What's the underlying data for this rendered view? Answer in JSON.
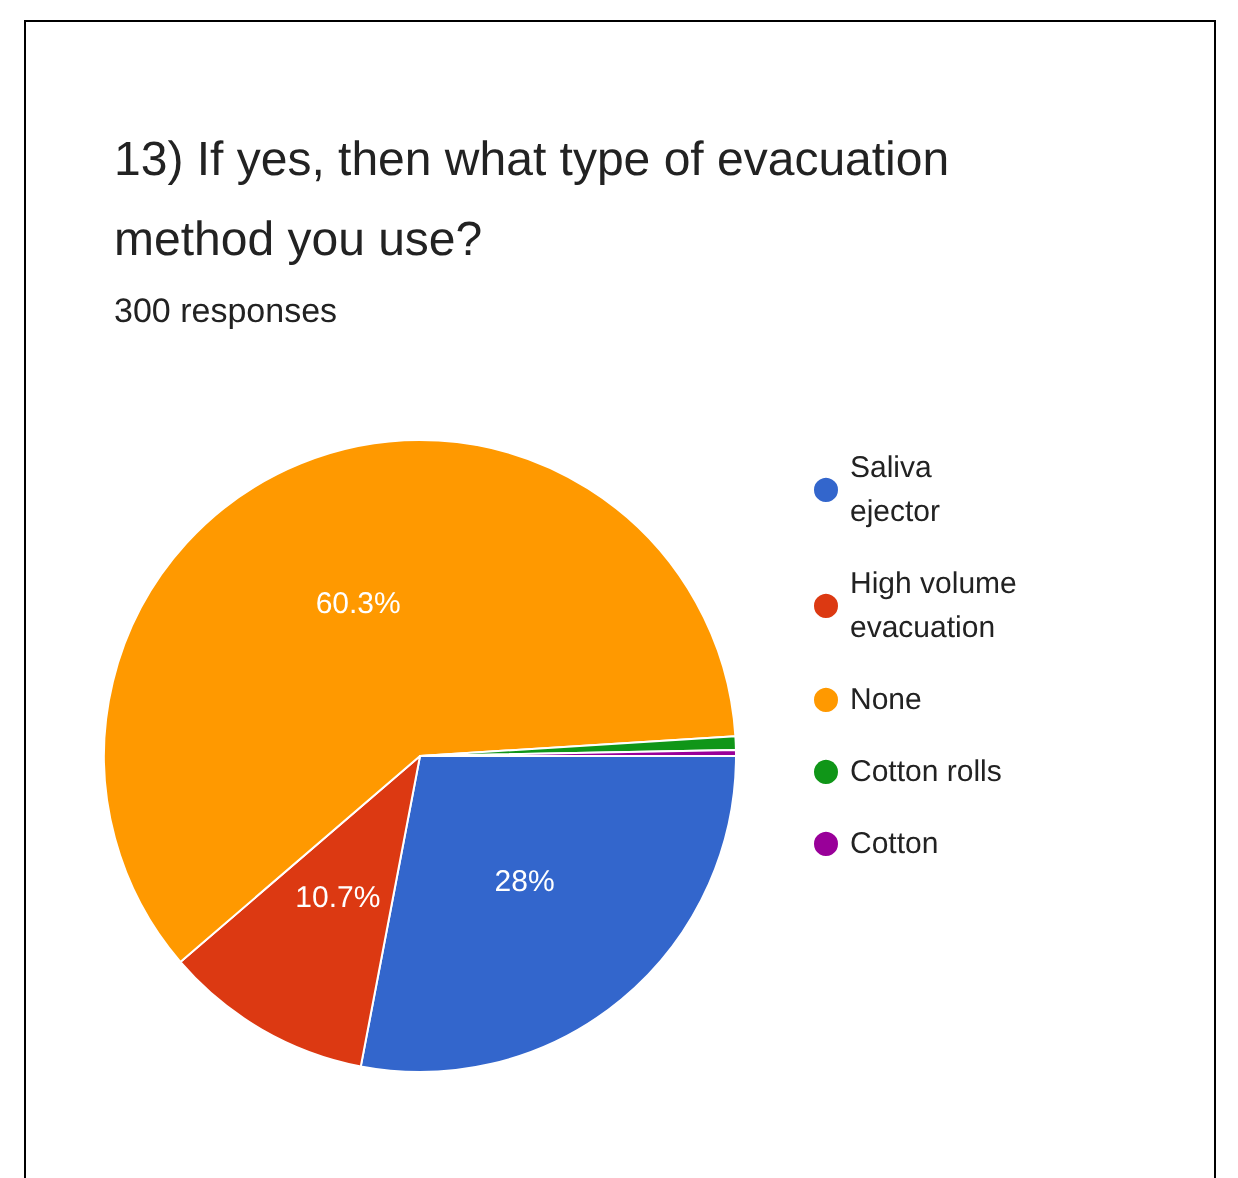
{
  "chart_data": {
    "type": "pie",
    "title": "13) If yes, then what type of evacuation method you use?",
    "subtitle": "300 responses",
    "categories": [
      "Saliva ejector",
      "High volume evacuation",
      "None",
      "Cotton rolls",
      "Cotton"
    ],
    "values": [
      28,
      10.7,
      60.3,
      0.7,
      0.3
    ],
    "colors": [
      "#3366cc",
      "#dc3912",
      "#ff9900",
      "#109618",
      "#990099"
    ],
    "value_labels": [
      "28%",
      "10.7%",
      "60.3%",
      null,
      null
    ],
    "legend": "right"
  }
}
